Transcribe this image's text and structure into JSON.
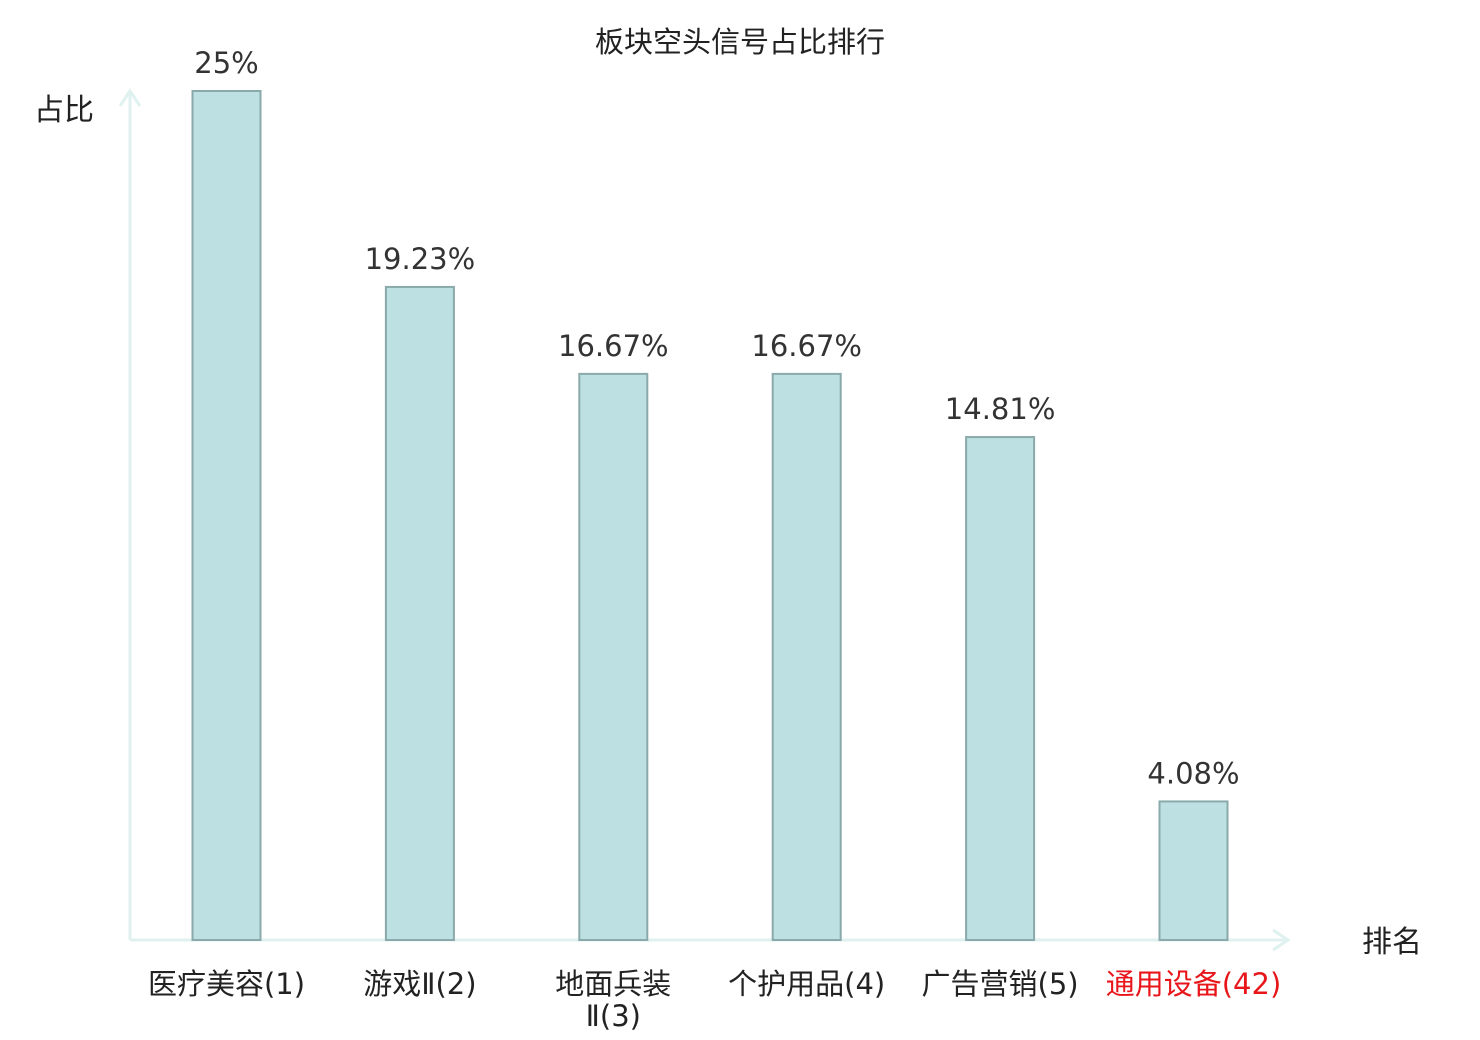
{
  "chart_data": {
    "type": "bar",
    "title": "板块空头信号占比排行",
    "ylabel": "占比",
    "xlabel": "排名",
    "categories": [
      [
        "医疗美容(1)"
      ],
      [
        "游戏Ⅱ(2)"
      ],
      [
        "地面兵装",
        "Ⅱ(3)"
      ],
      [
        "个护用品(4)"
      ],
      [
        "广告营销(5)"
      ],
      [
        "通用设备(42)"
      ]
    ],
    "values": [
      25,
      19.23,
      16.67,
      16.67,
      14.81,
      4.08
    ],
    "value_labels": [
      "25%",
      "19.23%",
      "16.67%",
      "16.67%",
      "14.81%",
      "4.08%"
    ],
    "highlight_index": 5,
    "ylim": [
      0,
      25
    ],
    "grid": false,
    "legend": "none"
  },
  "colors": {
    "bar_fill": "#bde0e2",
    "bar_stroke": "#8aa9ab",
    "axis": "#dff2ef",
    "text": "#222222",
    "highlight_text": "#e8161b"
  }
}
